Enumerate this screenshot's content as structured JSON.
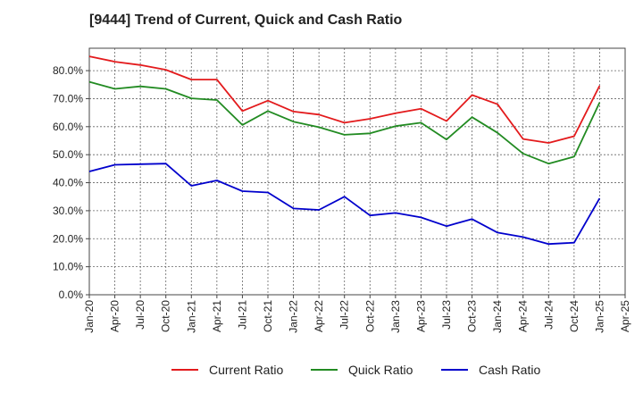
{
  "chart_data": {
    "type": "line",
    "title": "[9444]  Trend of Current, Quick and Cash Ratio",
    "xlabel": "",
    "ylabel": "",
    "ylim": [
      0,
      0.88
    ],
    "yticks": [
      0,
      0.1,
      0.2,
      0.3,
      0.4,
      0.5,
      0.6,
      0.7,
      0.8
    ],
    "ytick_labels": [
      "0.0%",
      "10.0%",
      "20.0%",
      "30.0%",
      "40.0%",
      "50.0%",
      "60.0%",
      "70.0%",
      "80.0%"
    ],
    "x_tick_labels": [
      "Jan-20",
      "Apr-20",
      "Jul-20",
      "Oct-20",
      "Jan-21",
      "Apr-21",
      "Jul-21",
      "Oct-21",
      "Jan-22",
      "Apr-22",
      "Jul-22",
      "Oct-22",
      "Jan-23",
      "Apr-23",
      "Jul-23",
      "Oct-23",
      "Jan-24",
      "Apr-24",
      "Jul-24",
      "Oct-24",
      "Jan-25",
      "Apr-25"
    ],
    "grid": true,
    "legend": "bottom",
    "series": [
      {
        "name": "Current Ratio",
        "color": "#e31a1c",
        "values": [
          0.851,
          0.832,
          0.82,
          0.803,
          0.768,
          0.768,
          0.656,
          0.693,
          0.654,
          0.643,
          0.614,
          0.628,
          0.648,
          0.664,
          0.62,
          0.713,
          0.68,
          0.556,
          0.542,
          0.566,
          0.746
        ]
      },
      {
        "name": "Quick Ratio",
        "color": "#228b22",
        "values": [
          0.76,
          0.735,
          0.744,
          0.735,
          0.701,
          0.695,
          0.606,
          0.656,
          0.618,
          0.598,
          0.571,
          0.576,
          0.602,
          0.614,
          0.554,
          0.634,
          0.578,
          0.504,
          0.468,
          0.493,
          0.686
        ]
      },
      {
        "name": "Cash Ratio",
        "color": "#0000cc",
        "values": [
          0.44,
          0.464,
          0.466,
          0.468,
          0.389,
          0.408,
          0.37,
          0.365,
          0.308,
          0.303,
          0.35,
          0.283,
          0.292,
          0.276,
          0.245,
          0.27,
          0.222,
          0.206,
          0.181,
          0.186,
          0.344
        ]
      }
    ]
  }
}
